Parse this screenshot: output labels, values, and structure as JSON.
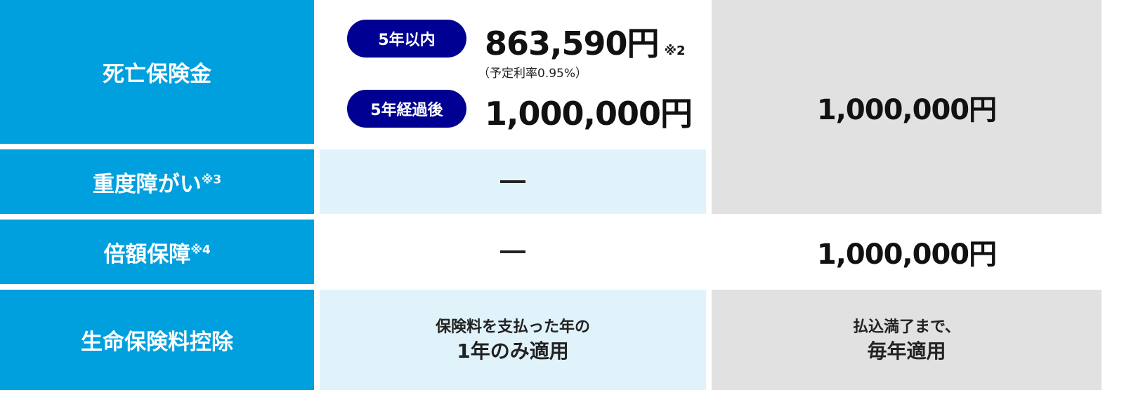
{
  "rows": [
    {
      "label": "死亡保険金",
      "note": ""
    },
    {
      "label": "重度障がい",
      "note": "※3"
    },
    {
      "label": "倍額保障",
      "note": "※4"
    },
    {
      "label": "生命保険料控除",
      "note": ""
    }
  ],
  "death": {
    "within5_label": "5年以内",
    "within5_amount": "863,590円",
    "within5_note": "※2",
    "rate": "（予定利率0.95%）",
    "after5_label": "5年経過後",
    "after5_amount": "1,000,000円"
  },
  "col2": {
    "disability": "—",
    "double": "—",
    "deduction_line1": "保険料を支払った年の",
    "deduction_line2": "1年のみ適用"
  },
  "col3": {
    "death_disability": "1,000,000円",
    "double": "1,000,000円",
    "deduction_line1": "払込満了まで、",
    "deduction_line2": "毎年適用"
  },
  "colors": {
    "header": "#009fdd",
    "pill": "#000092",
    "light_blue": "#e1f3fa",
    "grey": "#e1e1e1"
  }
}
